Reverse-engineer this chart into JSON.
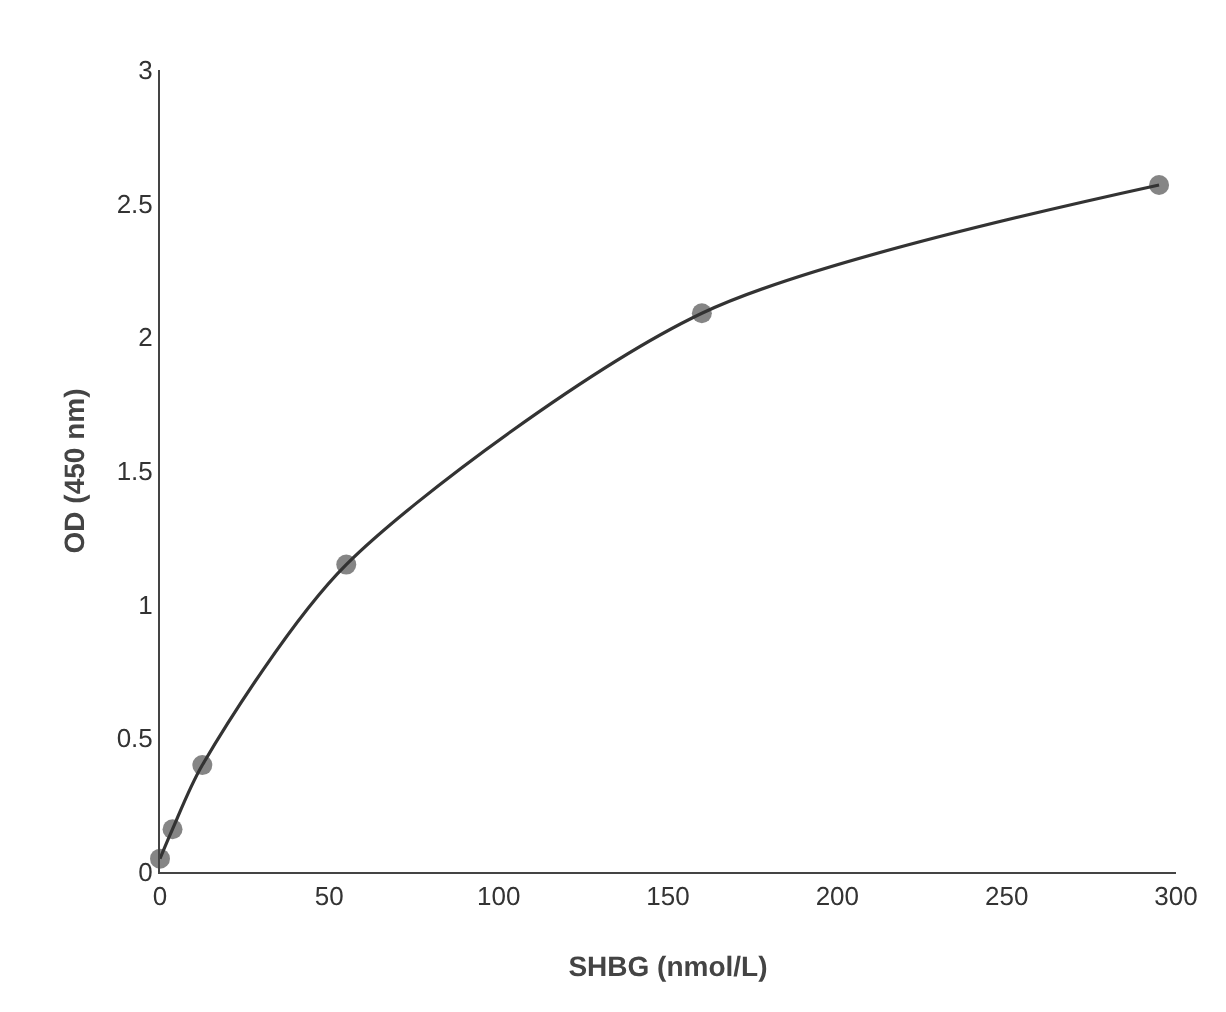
{
  "chart_data": {
    "type": "line",
    "xlabel": "SHBG (nmol/L)",
    "ylabel": "OD (450 nm)",
    "x": [
      0,
      3.7,
      12.5,
      55,
      160,
      295
    ],
    "series": [
      {
        "color": "#333333",
        "values": [
          0.05,
          0.16,
          0.4,
          1.15,
          2.09,
          2.57
        ]
      }
    ],
    "xlim": [
      0,
      300
    ],
    "xticks": [
      0,
      50,
      100,
      150,
      200,
      250,
      300
    ],
    "ylim": [
      0,
      3
    ],
    "yticks": [
      0,
      0.5,
      1,
      1.5,
      2,
      2.5,
      3
    ],
    "grid": false,
    "marker": "circle",
    "line_style": "solid"
  }
}
